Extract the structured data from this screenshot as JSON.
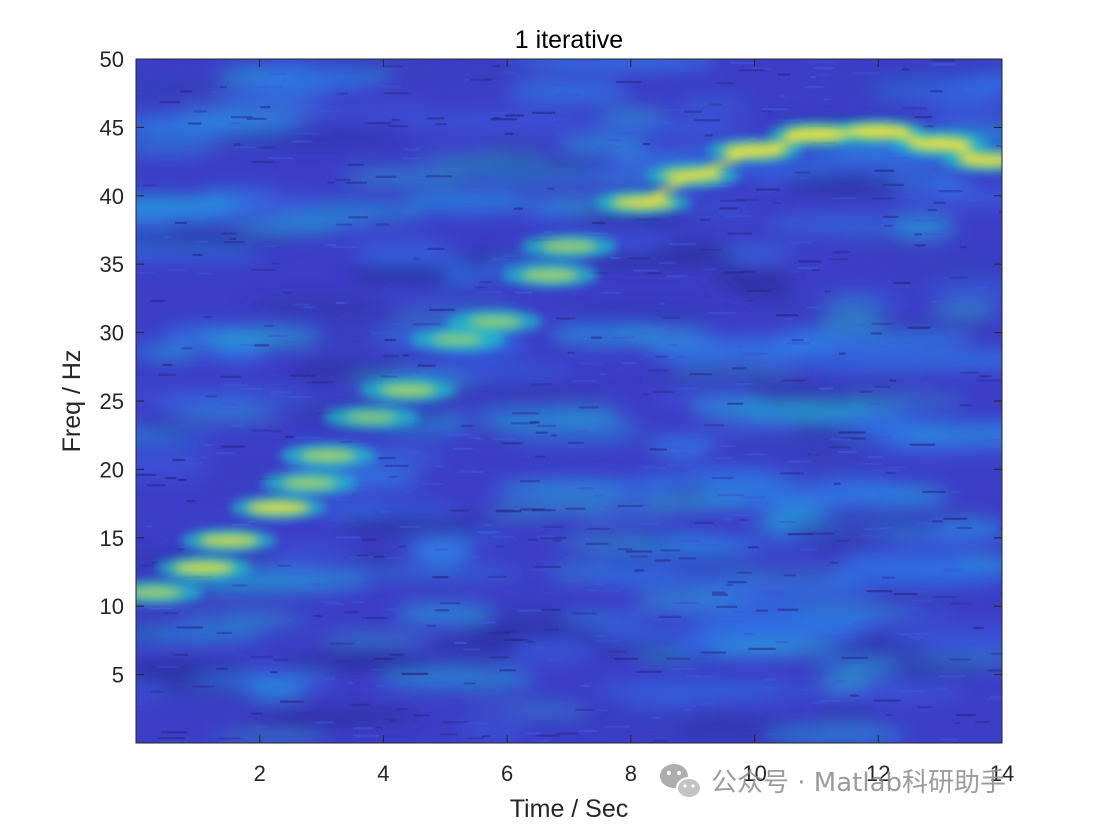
{
  "chart_data": {
    "type": "heatmap",
    "title": "1 iterative",
    "xlabel": "Time / Sec",
    "ylabel": "Freq / Hz",
    "xlim": [
      0,
      14
    ],
    "ylim": [
      0,
      50
    ],
    "xticks": [
      2,
      4,
      6,
      8,
      10,
      12,
      14
    ],
    "yticks": [
      5,
      10,
      15,
      20,
      25,
      30,
      35,
      40,
      45,
      50
    ],
    "grid": false,
    "colormap": "parula",
    "colors": {
      "background_low": "#3d3ec8",
      "background_mid": "#2f6fe6",
      "cyan": "#21c3c9",
      "yellow": "#f7e33a"
    },
    "ridge": [
      {
        "t": 0.3,
        "f": 11.0,
        "intensity": 0.55
      },
      {
        "t": 1.1,
        "f": 12.8,
        "intensity": 0.8
      },
      {
        "t": 1.5,
        "f": 14.8,
        "intensity": 0.75
      },
      {
        "t": 2.3,
        "f": 17.2,
        "intensity": 0.85
      },
      {
        "t": 2.8,
        "f": 19.0,
        "intensity": 0.55
      },
      {
        "t": 3.1,
        "f": 21.0,
        "intensity": 0.6
      },
      {
        "t": 3.8,
        "f": 23.8,
        "intensity": 0.45
      },
      {
        "t": 4.4,
        "f": 25.8,
        "intensity": 0.6
      },
      {
        "t": 5.2,
        "f": 29.5,
        "intensity": 0.45
      },
      {
        "t": 5.8,
        "f": 30.8,
        "intensity": 0.5
      },
      {
        "t": 6.7,
        "f": 34.2,
        "intensity": 0.6
      },
      {
        "t": 7.0,
        "f": 36.3,
        "intensity": 0.55
      },
      {
        "t": 8.2,
        "f": 39.5,
        "intensity": 0.85
      },
      {
        "t": 9.0,
        "f": 41.5,
        "intensity": 0.8
      },
      {
        "t": 10.0,
        "f": 43.3,
        "intensity": 0.9
      },
      {
        "t": 11.0,
        "f": 44.5,
        "intensity": 0.95
      },
      {
        "t": 12.0,
        "f": 44.7,
        "intensity": 0.95
      },
      {
        "t": 13.0,
        "f": 43.8,
        "intensity": 0.9
      },
      {
        "t": 13.8,
        "f": 42.6,
        "intensity": 0.85
      }
    ]
  },
  "watermark": {
    "icon": "wechat-icon",
    "text": "公众号 · Matlab科研助手"
  }
}
